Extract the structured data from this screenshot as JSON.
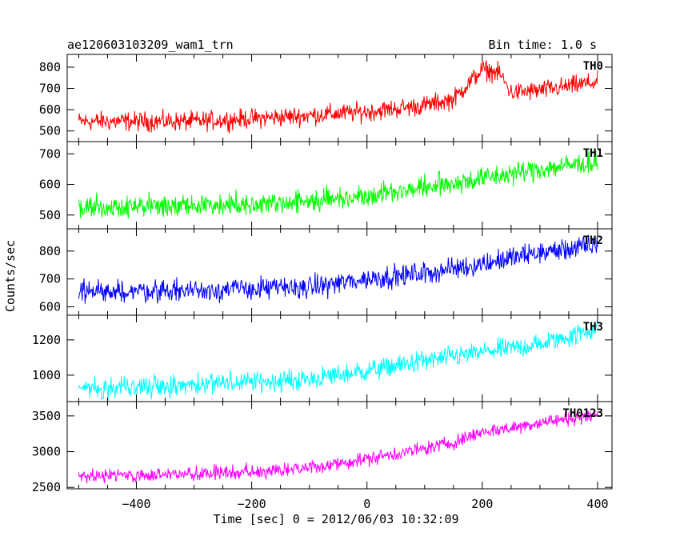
{
  "header": {
    "left_title": "ae120603103209_wam1_trn",
    "right_title": "Bin time: 1.0 s"
  },
  "chart_data": {
    "type": "line",
    "xlabel": "Time [sec] 0 = 2012/06/03 10:32:09",
    "ylabel": "Counts/sec",
    "xlim": [
      -520,
      425
    ],
    "x_ticks": [
      -400,
      -200,
      0,
      200,
      400
    ],
    "x_tick_labels": [
      "−400",
      "−200",
      "0",
      "200",
      "400"
    ],
    "x_range_data": [
      -500,
      400
    ],
    "bin_time": 1.0,
    "grid": false,
    "panels": [
      {
        "name": "TH0",
        "color": "#ff0000",
        "ylim": [
          450,
          860
        ],
        "y_ticks": [
          500,
          600,
          700,
          800
        ],
        "noise": 32,
        "trend": [
          [
            -500,
            545
          ],
          [
            -300,
            545
          ],
          [
            -150,
            565
          ],
          [
            0,
            590
          ],
          [
            100,
            620
          ],
          [
            150,
            650
          ],
          [
            200,
            790
          ],
          [
            230,
            770
          ],
          [
            250,
            680
          ],
          [
            300,
            690
          ],
          [
            400,
            730
          ]
        ]
      },
      {
        "name": "TH1",
        "color": "#00ff00",
        "ylim": [
          455,
          740
        ],
        "y_ticks": [
          500,
          600,
          700
        ],
        "noise": 26,
        "trend": [
          [
            -500,
            525
          ],
          [
            -300,
            530
          ],
          [
            -100,
            545
          ],
          [
            0,
            565
          ],
          [
            100,
            590
          ],
          [
            200,
            620
          ],
          [
            300,
            650
          ],
          [
            400,
            675
          ]
        ]
      },
      {
        "name": "TH2",
        "color": "#0000ff",
        "ylim": [
          570,
          880
        ],
        "y_ticks": [
          600,
          700,
          800
        ],
        "noise": 28,
        "trend": [
          [
            -500,
            655
          ],
          [
            -300,
            660
          ],
          [
            -100,
            670
          ],
          [
            0,
            700
          ],
          [
            100,
            720
          ],
          [
            200,
            755
          ],
          [
            300,
            795
          ],
          [
            400,
            820
          ]
        ]
      },
      {
        "name": "TH3",
        "color": "#00ffff",
        "ylim": [
          850,
          1340
        ],
        "y_ticks": [
          1000,
          1200
        ],
        "noise": 42,
        "trend": [
          [
            -500,
            930
          ],
          [
            -300,
            945
          ],
          [
            -100,
            975
          ],
          [
            0,
            1025
          ],
          [
            100,
            1080
          ],
          [
            200,
            1130
          ],
          [
            300,
            1175
          ],
          [
            400,
            1265
          ]
        ]
      },
      {
        "name": "TH0123",
        "color": "#ff00ff",
        "ylim": [
          2480,
          3700
        ],
        "y_ticks": [
          2500,
          3000,
          3500
        ],
        "noise": 70,
        "trend": [
          [
            -500,
            2660
          ],
          [
            -300,
            2680
          ],
          [
            -100,
            2770
          ],
          [
            0,
            2900
          ],
          [
            100,
            3040
          ],
          [
            150,
            3130
          ],
          [
            200,
            3280
          ],
          [
            250,
            3330
          ],
          [
            300,
            3410
          ],
          [
            400,
            3510
          ]
        ]
      }
    ]
  }
}
